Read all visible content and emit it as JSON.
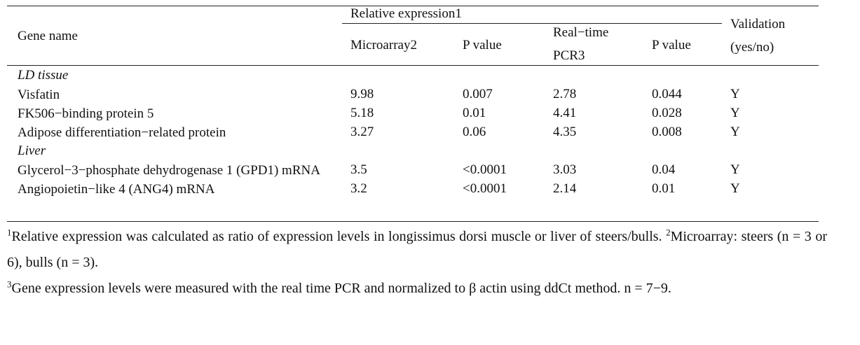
{
  "header": {
    "group": "Relative expression1",
    "columns": [
      [
        "Gene name"
      ],
      [
        "Microarray2"
      ],
      [
        "P value"
      ],
      [
        "Real−time",
        "PCR3"
      ],
      [
        "P value"
      ],
      [
        "Validation",
        "(yes/no)"
      ]
    ]
  },
  "sections": [
    {
      "label": "LD tissue",
      "rows": [
        [
          "Visfatin",
          "9.98",
          "0.007",
          "2.78",
          "0.044",
          "Y"
        ],
        [
          "FK506−binding protein 5",
          "5.18",
          "0.01",
          "4.41",
          "0.028",
          "Y"
        ],
        [
          "Adipose differentiation−related protein",
          "3.27",
          "0.06",
          "4.35",
          "0.008",
          "Y"
        ]
      ]
    },
    {
      "label": "Liver",
      "rows": [
        [
          "Glycerol−3−phosphate dehydrogenase 1 (GPD1) mRNA",
          "3.5",
          "<0.0001",
          "3.03",
          "0.04",
          "Y"
        ],
        [
          "Angiopoietin−like 4 (ANG4) mRNA",
          "3.2",
          "<0.0001",
          "2.14",
          "0.01",
          "Y"
        ]
      ]
    }
  ],
  "footnotes": [
    [
      {
        "sup": "1",
        "text": "Relative expression was calculated as ratio of expression levels in longissimus dorsi muscle or liver of steers/bulls. "
      },
      {
        "sup": "2",
        "text": "Microarray: steers (n = 3 or 6), bulls (n = 3)."
      }
    ],
    [
      {
        "sup": "3",
        "text": "Gene expression levels were measured with the real time PCR and normalized to β actin using ddCt method. n = 7−9."
      }
    ]
  ]
}
